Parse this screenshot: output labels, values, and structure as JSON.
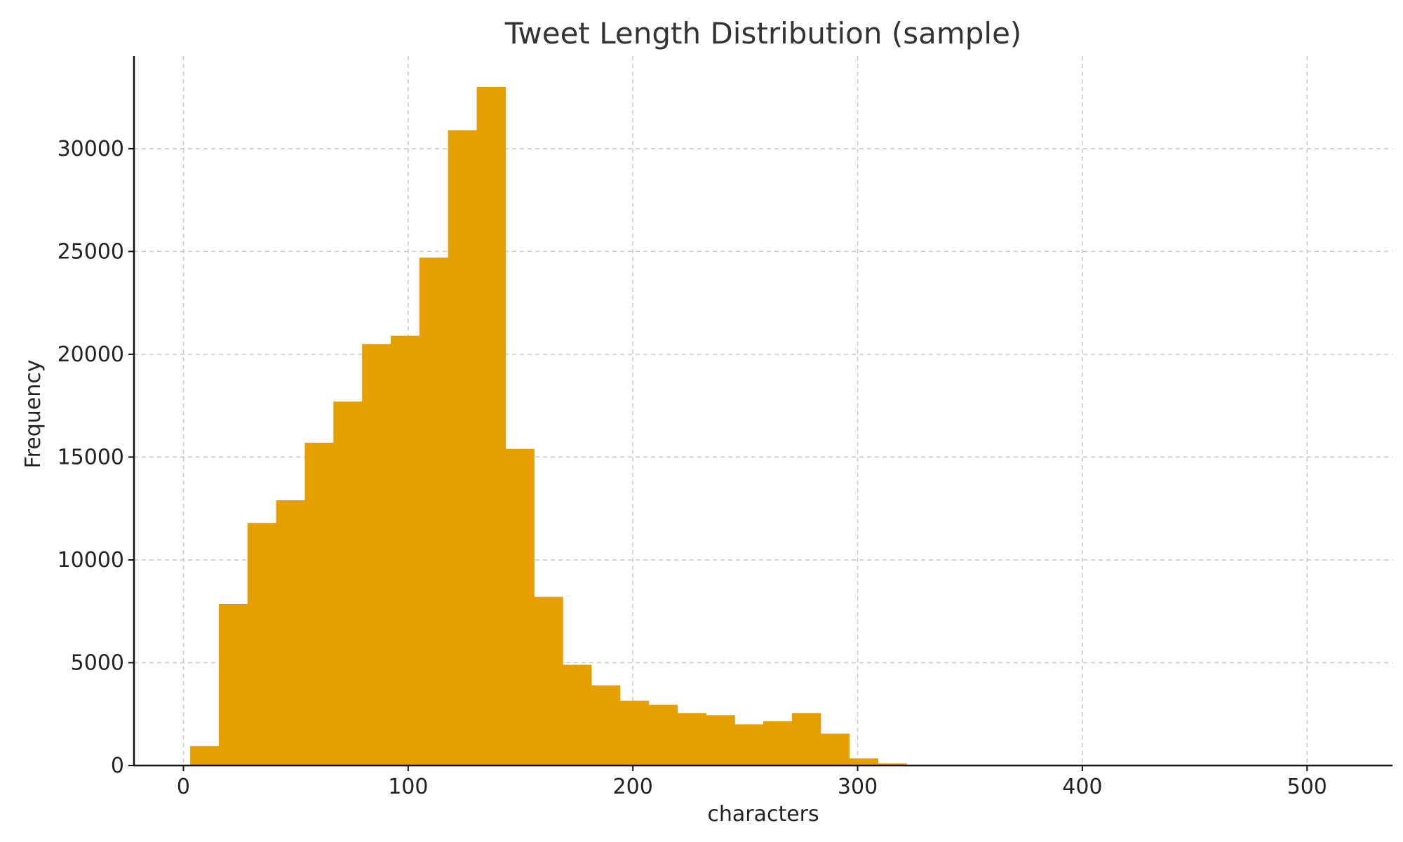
{
  "chart_data": {
    "type": "bar",
    "title": "Tweet Length Distribution (sample)",
    "xlabel": "characters",
    "ylabel": "Frequency",
    "xlim": [
      -22,
      538
    ],
    "ylim": [
      0,
      34500
    ],
    "xticks": [
      0,
      100,
      200,
      300,
      400,
      500
    ],
    "yticks": [
      0,
      5000,
      10000,
      15000,
      20000,
      25000,
      30000
    ],
    "grid": true,
    "bar_color": "#e69f00",
    "bin_edges": [
      3,
      15.75,
      28.5,
      41.25,
      54,
      66.75,
      79.5,
      92.25,
      105,
      117.75,
      130.5,
      143.25,
      156,
      168.75,
      181.5,
      194.25,
      207,
      219.75,
      232.5,
      245.25,
      258,
      270.75,
      283.5,
      296.25,
      309,
      321.75,
      334.5,
      347.25,
      360,
      372.75,
      385.5,
      398.25,
      411,
      423.75,
      436.5,
      449.25,
      462,
      474.75,
      487.5,
      500.25,
      513
    ],
    "values": [
      950,
      7850,
      11800,
      12900,
      15700,
      17700,
      20500,
      20900,
      24700,
      30900,
      33000,
      15400,
      8200,
      4900,
      3900,
      3150,
      2950,
      2550,
      2450,
      2000,
      2150,
      2550,
      1550,
      350,
      100,
      0,
      0,
      0,
      0,
      0,
      0,
      0,
      0,
      0,
      0,
      0,
      0,
      0,
      0,
      0
    ]
  }
}
